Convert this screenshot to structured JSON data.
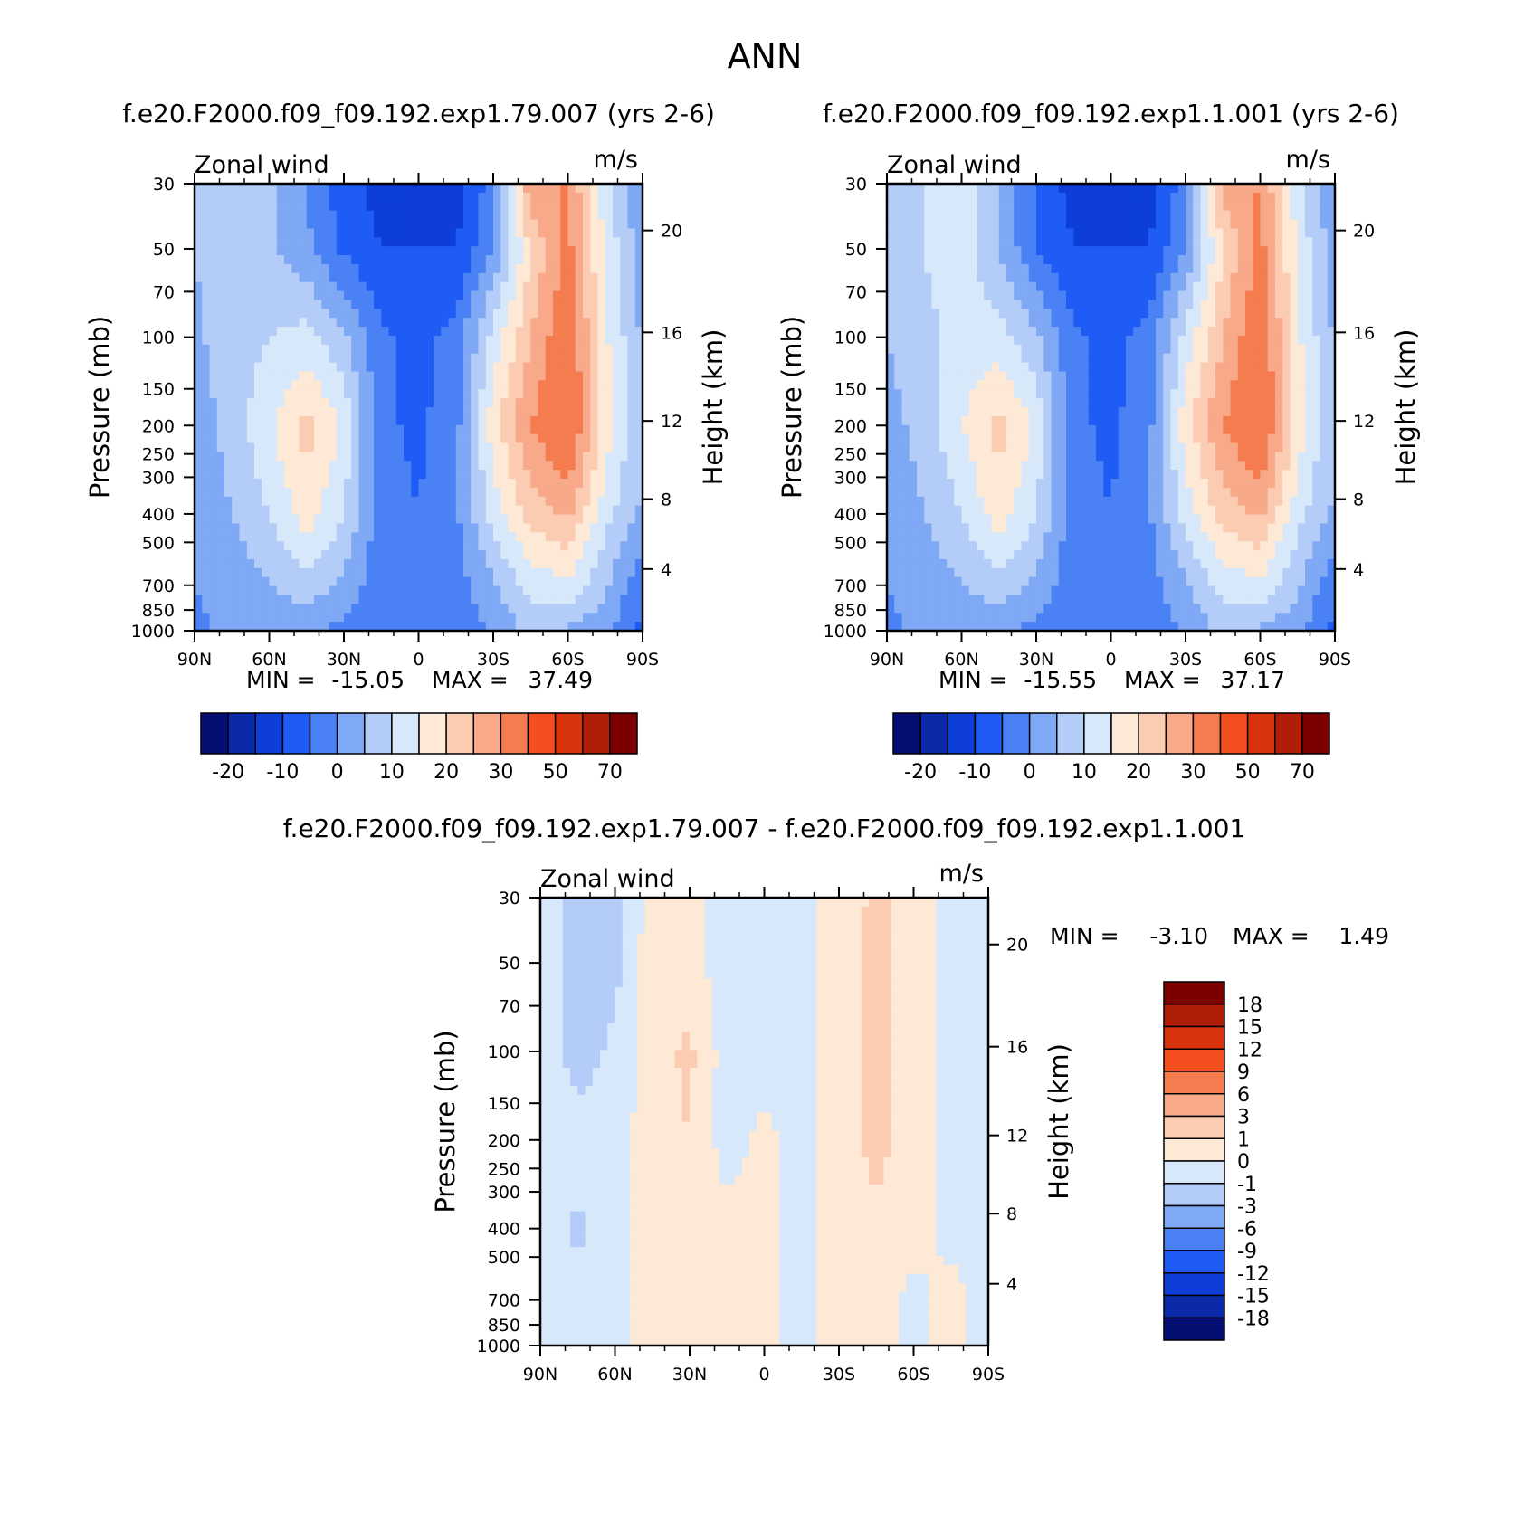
{
  "title": "ANN",
  "chart_data": [
    {
      "type": "heatmap",
      "title": "f.e20.F2000.f09_f09.192.exp1.79.007 (yrs 2-6)",
      "left_label": "Zonal wind",
      "units": "m/s",
      "ylabel": "Pressure (mb)",
      "y2label": "Height (km)",
      "x_ticks": [
        "90N",
        "60N",
        "30N",
        "0",
        "30S",
        "60S",
        "90S"
      ],
      "y_ticks": [
        "30",
        "50",
        "70",
        "100",
        "150",
        "200",
        "250",
        "300",
        "400",
        "500",
        "700",
        "850",
        "1000"
      ],
      "y2_ticks": [
        "20",
        "16",
        "12",
        "8",
        "4"
      ],
      "min_label": "MIN =",
      "min_value": "-15.05",
      "max_label": "MAX =",
      "max_value": "37.49",
      "colorbar_labels": [
        "-20",
        "-10",
        "0",
        "10",
        "20",
        "30",
        "50",
        "70"
      ],
      "colorbar_colors": [
        "#050f73",
        "#0a2aaa",
        "#0d3ed8",
        "#1e5cf5",
        "#4a82f5",
        "#7fa8f5",
        "#b3ccf8",
        "#d6e8fa",
        "#fde9d6",
        "#fbccb2",
        "#f8a98a",
        "#f57c4f",
        "#f54e1f",
        "#d8330c",
        "#b01e08",
        "#7d0000"
      ],
      "field": {
        "lat": [
          90,
          75,
          60,
          45,
          30,
          15,
          0,
          -15,
          -30,
          -45,
          -60,
          -75,
          -90
        ],
        "pressure": [
          30,
          50,
          100,
          200,
          400,
          700,
          1000
        ],
        "u": [
          [
            5,
            8,
            6,
            0,
            -8,
            -12,
            -12,
            -13,
            -2,
            30,
            30,
            12,
            0
          ],
          [
            5,
            8,
            6,
            1,
            -6,
            -10,
            -10,
            -10,
            0,
            20,
            32,
            14,
            2
          ],
          [
            4,
            8,
            10,
            12,
            6,
            -4,
            -7,
            -3,
            12,
            25,
            35,
            16,
            4
          ],
          [
            2,
            7,
            14,
            22,
            14,
            -4,
            -6,
            -2,
            18,
            30,
            37,
            18,
            5
          ],
          [
            1,
            5,
            10,
            18,
            10,
            -3,
            -5,
            -1,
            12,
            22,
            26,
            12,
            4
          ],
          [
            0,
            2,
            5,
            8,
            4,
            -4,
            -4,
            -2,
            4,
            12,
            14,
            6,
            -4
          ],
          [
            -1,
            1,
            1,
            1,
            -2,
            -4,
            -4,
            -5,
            1,
            6,
            4,
            1,
            -6
          ]
        ]
      }
    },
    {
      "type": "heatmap",
      "title": "f.e20.F2000.f09_f09.192.exp1.1.001 (yrs 2-6)",
      "left_label": "Zonal wind",
      "units": "m/s",
      "ylabel": "Pressure (mb)",
      "y2label": "Height (km)",
      "x_ticks": [
        "90N",
        "60N",
        "30N",
        "0",
        "30S",
        "60S",
        "90S"
      ],
      "y_ticks": [
        "30",
        "50",
        "70",
        "100",
        "150",
        "200",
        "250",
        "300",
        "400",
        "500",
        "700",
        "850",
        "1000"
      ],
      "y2_ticks": [
        "20",
        "16",
        "12",
        "8",
        "4"
      ],
      "min_label": "MIN =",
      "min_value": "-15.55",
      "max_label": "MAX =",
      "max_value": "37.17",
      "colorbar_labels": [
        "-20",
        "-10",
        "0",
        "10",
        "20",
        "30",
        "50",
        "70"
      ],
      "colorbar_colors": [
        "#050f73",
        "#0a2aaa",
        "#0d3ed8",
        "#1e5cf5",
        "#4a82f5",
        "#7fa8f5",
        "#b3ccf8",
        "#d6e8fa",
        "#fde9d6",
        "#fbccb2",
        "#f8a98a",
        "#f57c4f",
        "#f54e1f",
        "#d8330c",
        "#b01e08",
        "#7d0000"
      ],
      "field": {
        "lat": [
          90,
          75,
          60,
          45,
          30,
          15,
          0,
          -15,
          -30,
          -45,
          -60,
          -75,
          -90
        ],
        "pressure": [
          30,
          50,
          100,
          200,
          400,
          700,
          1000
        ],
        "u": [
          [
            6,
            10,
            14,
            4,
            -6,
            -12,
            -12,
            -13,
            -2,
            28,
            30,
            12,
            0
          ],
          [
            6,
            10,
            13,
            5,
            -5,
            -10,
            -10,
            -10,
            0,
            20,
            32,
            14,
            2
          ],
          [
            5,
            9,
            11,
            12,
            6,
            -4,
            -7,
            -3,
            12,
            25,
            35,
            16,
            4
          ],
          [
            3,
            7,
            15,
            22,
            14,
            -4,
            -6,
            -2,
            18,
            30,
            37,
            18,
            5
          ],
          [
            1,
            5,
            10,
            18,
            10,
            -3,
            -5,
            -1,
            12,
            22,
            26,
            12,
            4
          ],
          [
            0,
            2,
            5,
            8,
            4,
            -4,
            -4,
            -2,
            4,
            12,
            14,
            6,
            -4
          ],
          [
            -1,
            1,
            1,
            1,
            -2,
            -4,
            -4,
            -5,
            1,
            6,
            4,
            1,
            -6
          ]
        ]
      }
    },
    {
      "type": "heatmap",
      "title": "f.e20.F2000.f09_f09.192.exp1.79.007 - f.e20.F2000.f09_f09.192.exp1.1.001",
      "left_label": "Zonal wind",
      "units": "m/s",
      "ylabel": "Pressure (mb)",
      "y2label": "Height (km)",
      "x_ticks": [
        "90N",
        "60N",
        "30N",
        "0",
        "30S",
        "60S",
        "90S"
      ],
      "y_ticks": [
        "30",
        "50",
        "70",
        "100",
        "150",
        "200",
        "250",
        "300",
        "400",
        "500",
        "700",
        "850",
        "1000"
      ],
      "y2_ticks": [
        "20",
        "16",
        "12",
        "8",
        "4"
      ],
      "min_label": "MIN =",
      "min_value": "-3.10",
      "max_label": "MAX =",
      "max_value": "1.49",
      "colorbar_labels": [
        "18",
        "15",
        "12",
        "9",
        "6",
        "3",
        "1",
        "0",
        "-1",
        "-3",
        "-6",
        "-9",
        "-12",
        "-15",
        "-18"
      ],
      "colorbar_colors": [
        "#7d0000",
        "#b01e08",
        "#d8330c",
        "#f54e1f",
        "#f57c4f",
        "#f8a98a",
        "#fbccb2",
        "#fde9d6",
        "#d6e8fa",
        "#b3ccf8",
        "#7fa8f5",
        "#4a82f5",
        "#1e5cf5",
        "#0d3ed8",
        "#0a2aaa",
        "#050f73"
      ],
      "field": {
        "lat": [
          90,
          75,
          60,
          45,
          30,
          15,
          0,
          -15,
          -30,
          -45,
          -60,
          -75,
          -90
        ],
        "pressure": [
          30,
          50,
          100,
          200,
          400,
          700,
          1000
        ],
        "u": [
          [
            -0.5,
            -1.5,
            -1.3,
            0.5,
            0.3,
            -0.5,
            -0.5,
            -0.4,
            0.5,
            1.2,
            0.6,
            -0.5,
            -0.5
          ],
          [
            -0.5,
            -1.5,
            -1.3,
            0.6,
            0.4,
            -0.5,
            -0.5,
            -0.4,
            0.5,
            1.3,
            0.7,
            -0.5,
            -0.5
          ],
          [
            -0.4,
            -1.4,
            -0.8,
            0.6,
            1.2,
            -0.5,
            -0.5,
            -0.4,
            0.5,
            1.3,
            0.6,
            -0.5,
            -0.5
          ],
          [
            -0.3,
            -0.6,
            -0.5,
            0.6,
            1.0,
            -0.5,
            0.3,
            -0.5,
            0.5,
            1.3,
            0.6,
            -0.4,
            -0.5
          ],
          [
            -0.5,
            -1.2,
            -0.5,
            0.5,
            0.5,
            0.4,
            0.4,
            -0.4,
            0.5,
            0.8,
            0.4,
            -0.3,
            -0.5
          ],
          [
            -0.5,
            -0.5,
            -0.5,
            0.5,
            0.4,
            0.5,
            0.3,
            -0.4,
            0.5,
            0.6,
            -0.3,
            0.3,
            -0.3
          ],
          [
            -0.5,
            -0.5,
            -0.4,
            0.4,
            0.4,
            0.4,
            0.2,
            -0.4,
            0.4,
            0.5,
            -0.3,
            0.3,
            -0.4
          ]
        ]
      }
    }
  ]
}
